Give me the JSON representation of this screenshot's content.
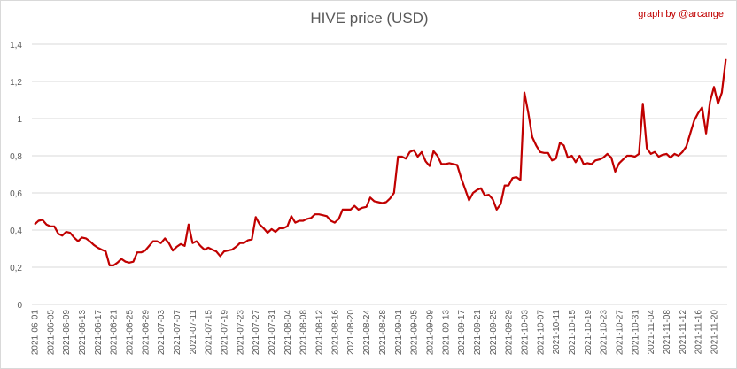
{
  "chart_data": {
    "type": "line",
    "title": "HIVE price (USD)",
    "credit": "graph by @arcange",
    "xlabel": "",
    "ylabel": "",
    "ylim": [
      0,
      1.4
    ],
    "y_ticks": [
      "0",
      "0,2",
      "0,4",
      "0,6",
      "0,8",
      "1",
      "1,2",
      "1,4"
    ],
    "y_tick_values": [
      0,
      0.2,
      0.4,
      0.6,
      0.8,
      1.0,
      1.2,
      1.4
    ],
    "grid": true,
    "legend": "none",
    "line_color": "#c00000",
    "x_start": "2021-06-01",
    "x_interval_days": 1,
    "x_tick_every_days": 4,
    "x_ticks": [
      "2021-06-01",
      "2021-06-05",
      "2021-06-09",
      "2021-06-13",
      "2021-06-17",
      "2021-06-21",
      "2021-06-25",
      "2021-06-29",
      "2021-07-03",
      "2021-07-07",
      "2021-07-11",
      "2021-07-15",
      "2021-07-19",
      "2021-07-23",
      "2021-07-27",
      "2021-07-31",
      "2021-08-04",
      "2021-08-08",
      "2021-08-12",
      "2021-08-16",
      "2021-08-20",
      "2021-08-24",
      "2021-08-28",
      "2021-09-01",
      "2021-09-05",
      "2021-09-09",
      "2021-09-13",
      "2021-09-17",
      "2021-09-21",
      "2021-09-25",
      "2021-09-29",
      "2021-10-03",
      "2021-10-07",
      "2021-10-11",
      "2021-10-15",
      "2021-10-19",
      "2021-10-23",
      "2021-10-27",
      "2021-10-31",
      "2021-11-04",
      "2021-11-08",
      "2021-11-12",
      "2021-11-16",
      "2021-11-20"
    ],
    "series": [
      {
        "name": "HIVE price (USD)",
        "values": [
          0.43,
          0.45,
          0.455,
          0.43,
          0.42,
          0.42,
          0.38,
          0.37,
          0.39,
          0.385,
          0.36,
          0.34,
          0.36,
          0.355,
          0.34,
          0.32,
          0.305,
          0.295,
          0.285,
          0.21,
          0.21,
          0.225,
          0.245,
          0.23,
          0.225,
          0.23,
          0.28,
          0.28,
          0.29,
          0.315,
          0.34,
          0.34,
          0.33,
          0.355,
          0.33,
          0.29,
          0.31,
          0.325,
          0.315,
          0.43,
          0.33,
          0.34,
          0.315,
          0.295,
          0.305,
          0.295,
          0.285,
          0.26,
          0.285,
          0.29,
          0.295,
          0.31,
          0.33,
          0.33,
          0.345,
          0.35,
          0.47,
          0.43,
          0.41,
          0.385,
          0.405,
          0.39,
          0.41,
          0.41,
          0.42,
          0.475,
          0.44,
          0.45,
          0.45,
          0.46,
          0.465,
          0.485,
          0.485,
          0.48,
          0.475,
          0.45,
          0.44,
          0.46,
          0.51,
          0.51,
          0.51,
          0.53,
          0.51,
          0.52,
          0.525,
          0.575,
          0.555,
          0.55,
          0.545,
          0.55,
          0.57,
          0.6,
          0.795,
          0.795,
          0.785,
          0.82,
          0.83,
          0.795,
          0.82,
          0.77,
          0.745,
          0.825,
          0.8,
          0.755,
          0.755,
          0.76,
          0.755,
          0.75,
          0.68,
          0.62,
          0.56,
          0.6,
          0.615,
          0.625,
          0.585,
          0.59,
          0.565,
          0.51,
          0.54,
          0.64,
          0.64,
          0.68,
          0.685,
          0.67,
          1.14,
          1.03,
          0.9,
          0.855,
          0.82,
          0.815,
          0.815,
          0.775,
          0.785,
          0.87,
          0.855,
          0.79,
          0.8,
          0.765,
          0.8,
          0.755,
          0.76,
          0.755,
          0.775,
          0.78,
          0.79,
          0.81,
          0.79,
          0.715,
          0.76,
          0.78,
          0.8,
          0.8,
          0.795,
          0.81,
          1.08,
          0.84,
          0.81,
          0.82,
          0.795,
          0.805,
          0.81,
          0.79,
          0.81,
          0.8,
          0.82,
          0.85,
          0.92,
          0.99,
          1.03,
          1.06,
          0.92,
          1.09,
          1.17,
          1.08,
          1.14,
          1.32
        ]
      }
    ]
  }
}
